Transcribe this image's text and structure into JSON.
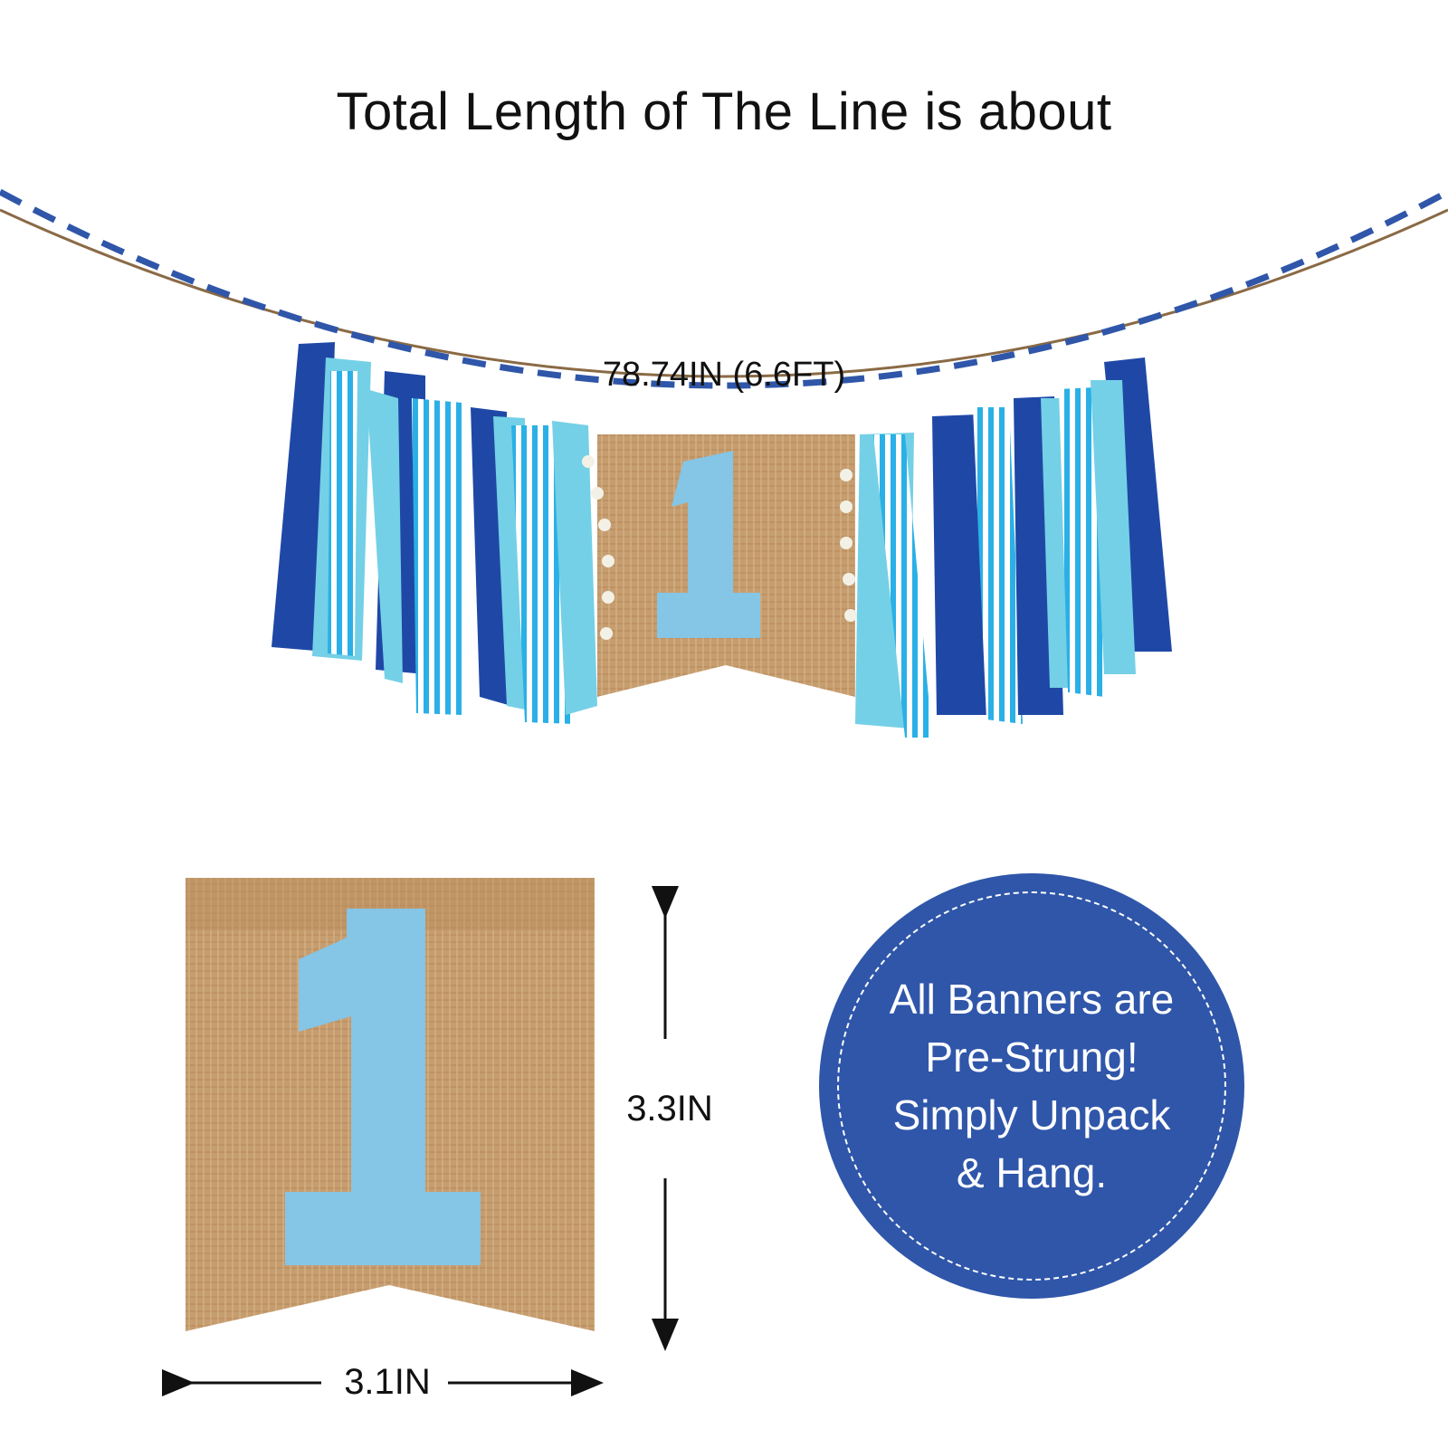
{
  "headline": "Total Length of The Line is about",
  "garland": {
    "length_label": "78.74IN (6.6FT)",
    "center_numeral": "1"
  },
  "pennant": {
    "numeral": "1",
    "height_label": "3.3IN",
    "width_label": "3.1IN"
  },
  "badge": {
    "lines": [
      "All Banners are",
      "Pre-Strung!",
      "Simply Unpack",
      "& Hang."
    ]
  },
  "colors": {
    "navy": "#2f56a9",
    "royal_blue": "#1f48a6",
    "aqua": "#74d0e6",
    "light_blue": "#85c5e6",
    "burlap": "#c49a6c",
    "stripe_blue": "#2ab0e6",
    "twine": "#8a6a45"
  }
}
